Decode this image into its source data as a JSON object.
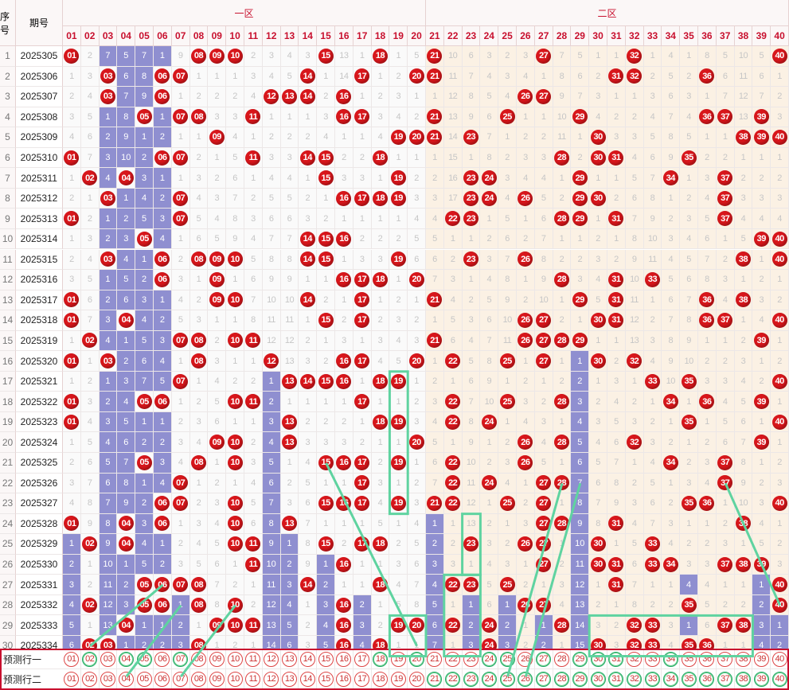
{
  "header": {
    "seq_label": "序号",
    "period_label": "期号",
    "zone1_label": "一区",
    "zone2_label": "二区"
  },
  "columns": [
    "01",
    "02",
    "03",
    "04",
    "05",
    "06",
    "07",
    "08",
    "09",
    "10",
    "11",
    "12",
    "13",
    "14",
    "15",
    "16",
    "17",
    "18",
    "19",
    "20",
    "21",
    "22",
    "23",
    "24",
    "25",
    "26",
    "27",
    "28",
    "29",
    "30",
    "31",
    "32",
    "33",
    "34",
    "35",
    "36",
    "37",
    "38",
    "39",
    "40"
  ],
  "periods": [
    "2025305",
    "2025306",
    "2025307",
    "2025308",
    "2025309",
    "2025310",
    "2025311",
    "2025312",
    "2025313",
    "2025314",
    "2025315",
    "2025316",
    "2025317",
    "2025318",
    "2025319",
    "2025320",
    "2025321",
    "2025322",
    "2025323",
    "2025324",
    "2025325",
    "2025326",
    "2025327",
    "2025328",
    "2025329",
    "2025330",
    "2025331",
    "2025332",
    "2025333",
    "2025334"
  ],
  "rows": [
    [
      "O",
      2,
      7,
      5,
      7,
      1,
      9,
      "O",
      "O",
      "O",
      2,
      3,
      4,
      3,
      "O",
      13,
      1,
      "O",
      1,
      5,
      "O",
      10,
      6,
      3,
      2,
      3,
      "O",
      7,
      5,
      1,
      1,
      "O",
      1,
      4,
      1,
      8,
      5,
      10,
      5,
      "O"
    ],
    [
      1,
      3,
      "O",
      6,
      8,
      "O",
      "O",
      1,
      1,
      1,
      3,
      4,
      5,
      "O",
      1,
      14,
      "O",
      1,
      2,
      "O",
      "O",
      11,
      7,
      4,
      3,
      4,
      1,
      8,
      6,
      2,
      "O",
      "O",
      2,
      5,
      2,
      "O",
      6,
      11,
      6,
      1
    ],
    [
      2,
      4,
      "O",
      7,
      9,
      "O",
      1,
      2,
      2,
      2,
      4,
      "O",
      "O",
      "O",
      2,
      "O",
      1,
      2,
      3,
      1,
      1,
      12,
      8,
      5,
      4,
      "O",
      "O",
      9,
      7,
      3,
      1,
      1,
      3,
      6,
      3,
      1,
      7,
      12,
      7,
      2
    ],
    [
      3,
      5,
      1,
      8,
      "O",
      1,
      "O",
      "O",
      3,
      3,
      "O",
      1,
      1,
      1,
      3,
      "O",
      "O",
      3,
      4,
      2,
      "O",
      13,
      9,
      6,
      "O",
      1,
      1,
      10,
      "O",
      4,
      2,
      2,
      4,
      7,
      4,
      "O",
      "O",
      13,
      "O",
      3
    ],
    [
      4,
      6,
      2,
      9,
      1,
      2,
      1,
      1,
      "O",
      4,
      1,
      2,
      2,
      2,
      4,
      1,
      1,
      4,
      "O",
      "O",
      "O",
      14,
      "O",
      7,
      1,
      2,
      2,
      11,
      1,
      "O",
      3,
      3,
      5,
      8,
      5,
      1,
      1,
      "O",
      "O",
      "O"
    ],
    [
      "O",
      7,
      3,
      10,
      2,
      "O",
      "O",
      2,
      1,
      5,
      "O",
      3,
      3,
      "O",
      "O",
      2,
      2,
      "O",
      1,
      1,
      1,
      15,
      1,
      8,
      2,
      3,
      3,
      "O",
      2,
      "O",
      "O",
      4,
      6,
      9,
      "O",
      2,
      2,
      1,
      1,
      1
    ],
    [
      1,
      "O",
      4,
      "O",
      3,
      1,
      1,
      3,
      2,
      6,
      1,
      4,
      4,
      1,
      "O",
      3,
      3,
      1,
      "O",
      2,
      2,
      16,
      "O",
      "O",
      3,
      4,
      4,
      1,
      "O",
      1,
      1,
      5,
      7,
      "O",
      1,
      3,
      "O",
      2,
      2,
      2
    ],
    [
      2,
      1,
      "O",
      1,
      4,
      2,
      "O",
      4,
      3,
      7,
      2,
      5,
      5,
      2,
      1,
      "O",
      "O",
      "O",
      "O",
      3,
      3,
      17,
      "O",
      "O",
      4,
      "O",
      5,
      2,
      "O",
      "O",
      2,
      6,
      8,
      1,
      2,
      4,
      "O",
      3,
      3,
      3
    ],
    [
      "O",
      2,
      1,
      2,
      5,
      3,
      "O",
      5,
      4,
      8,
      3,
      6,
      6,
      3,
      2,
      1,
      1,
      1,
      1,
      4,
      4,
      "O",
      "O",
      1,
      5,
      1,
      6,
      "O",
      "O",
      1,
      "O",
      7,
      9,
      2,
      3,
      5,
      "O",
      4,
      4,
      4
    ],
    [
      1,
      3,
      2,
      3,
      "O",
      4,
      1,
      6,
      5,
      9,
      4,
      7,
      7,
      "O",
      "O",
      "O",
      2,
      2,
      2,
      5,
      5,
      1,
      1,
      2,
      6,
      2,
      7,
      1,
      1,
      2,
      1,
      8,
      10,
      3,
      4,
      6,
      1,
      5,
      "O",
      "O"
    ],
    [
      2,
      4,
      "O",
      4,
      1,
      "O",
      2,
      "O",
      "O",
      "O",
      5,
      8,
      8,
      "O",
      "O",
      1,
      3,
      3,
      "O",
      6,
      6,
      2,
      "O",
      3,
      7,
      "O",
      8,
      2,
      2,
      3,
      2,
      9,
      11,
      4,
      5,
      7,
      2,
      "O",
      1,
      "O"
    ],
    [
      3,
      5,
      1,
      5,
      2,
      "O",
      3,
      1,
      "O",
      1,
      6,
      9,
      9,
      1,
      1,
      "O",
      "O",
      "O",
      1,
      "O",
      7,
      3,
      1,
      4,
      8,
      1,
      9,
      "O",
      3,
      4,
      "O",
      10,
      "O",
      5,
      6,
      8,
      3,
      1,
      2,
      1
    ],
    [
      "O",
      6,
      2,
      6,
      3,
      1,
      4,
      2,
      "O",
      "O",
      7,
      10,
      10,
      "O",
      2,
      1,
      "O",
      1,
      2,
      1,
      "O",
      4,
      2,
      5,
      9,
      2,
      10,
      1,
      "O",
      5,
      "O",
      11,
      1,
      6,
      7,
      "O",
      4,
      "O",
      3,
      2
    ],
    [
      "O",
      7,
      3,
      "O",
      4,
      2,
      5,
      3,
      1,
      1,
      8,
      11,
      11,
      1,
      "O",
      2,
      "O",
      2,
      3,
      2,
      1,
      5,
      3,
      6,
      10,
      "O",
      "O",
      2,
      1,
      "O",
      "O",
      12,
      2,
      7,
      8,
      "O",
      "O",
      1,
      4,
      "O"
    ],
    [
      1,
      "O",
      4,
      1,
      5,
      3,
      "O",
      "O",
      2,
      "O",
      "O",
      12,
      12,
      2,
      1,
      3,
      1,
      3,
      4,
      3,
      "O",
      6,
      4,
      7,
      11,
      "O",
      "O",
      "O",
      "O",
      1,
      1,
      13,
      3,
      8,
      9,
      1,
      1,
      2,
      "O",
      1
    ],
    [
      "O",
      1,
      "O",
      2,
      6,
      4,
      1,
      "O",
      3,
      1,
      1,
      "O",
      13,
      3,
      2,
      "O",
      "O",
      4,
      5,
      "O",
      1,
      "O",
      5,
      8,
      "O",
      1,
      "O",
      1,
      1,
      "O",
      2,
      "O",
      4,
      9,
      10,
      2,
      2,
      3,
      1,
      2
    ],
    [
      1,
      2,
      1,
      3,
      7,
      5,
      "O",
      1,
      4,
      2,
      2,
      1,
      "O",
      "O",
      "O",
      "O",
      1,
      "O",
      "O",
      1,
      2,
      1,
      6,
      9,
      1,
      2,
      1,
      2,
      2,
      1,
      3,
      1,
      "O",
      10,
      "O",
      3,
      3,
      4,
      2,
      "O"
    ],
    [
      "O",
      3,
      2,
      4,
      "O",
      "O",
      1,
      2,
      5,
      "O",
      "O",
      2,
      1,
      1,
      1,
      1,
      "O",
      1,
      1,
      2,
      3,
      "O",
      7,
      10,
      "O",
      3,
      2,
      "O",
      3,
      2,
      4,
      2,
      1,
      "O",
      1,
      "O",
      4,
      5,
      "O",
      1
    ],
    [
      "O",
      4,
      3,
      5,
      1,
      1,
      2,
      3,
      6,
      1,
      1,
      3,
      "O",
      2,
      2,
      2,
      1,
      "O",
      "O",
      3,
      4,
      "O",
      8,
      "O",
      1,
      4,
      3,
      1,
      4,
      3,
      5,
      3,
      2,
      1,
      "O",
      1,
      5,
      6,
      1,
      "O"
    ],
    [
      1,
      5,
      4,
      6,
      2,
      2,
      3,
      4,
      "O",
      "O",
      2,
      4,
      "O",
      3,
      3,
      3,
      2,
      1,
      1,
      "O",
      5,
      1,
      9,
      1,
      2,
      "O",
      4,
      "O",
      5,
      4,
      6,
      "O",
      3,
      2,
      1,
      2,
      6,
      7,
      "O",
      1
    ],
    [
      2,
      6,
      5,
      7,
      "O",
      3,
      4,
      "O",
      1,
      "O",
      3,
      5,
      1,
      4,
      "O",
      "O",
      "O",
      2,
      "O",
      1,
      6,
      "O",
      10,
      2,
      3,
      "O",
      5,
      1,
      6,
      5,
      7,
      1,
      4,
      "O",
      2,
      3,
      "O",
      8,
      1,
      2
    ],
    [
      3,
      7,
      6,
      8,
      1,
      4,
      "O",
      1,
      2,
      1,
      4,
      6,
      2,
      5,
      1,
      1,
      "O",
      3,
      1,
      2,
      7,
      "O",
      11,
      "O",
      4,
      1,
      "O",
      "O",
      7,
      6,
      8,
      2,
      5,
      1,
      3,
      4,
      "O",
      9,
      2,
      3
    ],
    [
      4,
      8,
      7,
      9,
      2,
      "O",
      "O",
      2,
      3,
      "O",
      5,
      7,
      3,
      6,
      "O",
      "O",
      "O",
      4,
      "O",
      3,
      "O",
      "O",
      12,
      1,
      "O",
      2,
      "O",
      1,
      8,
      7,
      9,
      3,
      6,
      2,
      "O",
      "O",
      1,
      10,
      3,
      "O"
    ],
    [
      "O",
      9,
      8,
      "O",
      3,
      "O",
      1,
      3,
      4,
      "O",
      6,
      8,
      "O",
      7,
      1,
      1,
      1,
      5,
      1,
      4,
      1,
      1,
      13,
      2,
      1,
      3,
      "O",
      "O",
      9,
      8,
      "O",
      4,
      7,
      3,
      1,
      1,
      2,
      "O",
      4,
      1
    ],
    [
      1,
      "O",
      9,
      "O",
      4,
      1,
      2,
      4,
      5,
      "O",
      "O",
      9,
      1,
      8,
      "O",
      2,
      "O",
      "O",
      2,
      5,
      2,
      2,
      "O",
      3,
      2,
      "O",
      "O",
      1,
      10,
      "O",
      1,
      5,
      "O",
      4,
      2,
      2,
      3,
      1,
      5,
      2
    ],
    [
      2,
      1,
      10,
      1,
      5,
      2,
      3,
      5,
      6,
      1,
      "O",
      10,
      2,
      9,
      1,
      "O",
      1,
      1,
      3,
      6,
      3,
      3,
      1,
      4,
      3,
      1,
      "O",
      2,
      11,
      "O",
      "O",
      6,
      "O",
      "O",
      3,
      3,
      "O",
      "O",
      "O",
      3
    ],
    [
      3,
      2,
      11,
      2,
      "O",
      "O",
      "O",
      "O",
      7,
      2,
      1,
      11,
      3,
      "O",
      2,
      1,
      1,
      "O",
      4,
      7,
      4,
      "O",
      "O",
      5,
      "O",
      2,
      1,
      3,
      12,
      1,
      "O",
      7,
      1,
      1,
      4,
      4,
      1,
      1,
      1,
      "O"
    ],
    [
      4,
      "O",
      12,
      3,
      "O",
      "O",
      1,
      "O",
      8,
      "O",
      2,
      12,
      4,
      1,
      3,
      "O",
      2,
      1,
      5,
      8,
      5,
      1,
      1,
      6,
      1,
      "O",
      "O",
      4,
      13,
      2,
      1,
      8,
      2,
      2,
      "O",
      5,
      2,
      2,
      2,
      "O"
    ],
    [
      5,
      1,
      13,
      "O",
      1,
      1,
      2,
      1,
      "O",
      "O",
      "O",
      13,
      5,
      2,
      4,
      "O",
      3,
      2,
      "O",
      "O",
      6,
      "O",
      2,
      "O",
      2,
      1,
      1,
      "O",
      14,
      3,
      2,
      "O",
      "O",
      3,
      1,
      6,
      "O",
      "O",
      3,
      1
    ],
    [
      6,
      "O",
      "O",
      1,
      2,
      2,
      3,
      "O",
      1,
      2,
      1,
      14,
      6,
      3,
      5,
      "O",
      4,
      "O",
      1,
      1,
      7,
      1,
      3,
      "O",
      3,
      2,
      2,
      1,
      15,
      "O",
      3,
      "O",
      "O",
      4,
      "O",
      "O",
      1,
      1,
      4,
      2
    ]
  ],
  "bars": {
    "0": {
      "start": 24
    },
    "2": {
      "start": 0
    },
    "3": {
      "start": 0
    },
    "4": {
      "start": 0
    },
    "5": {
      "start": 0
    },
    "6": {
      "start": 27
    },
    "11": {
      "start": 16
    },
    "12": {
      "start": 24
    },
    "14": {
      "start": 25
    },
    "16": {
      "start": 27
    },
    "20": {
      "start": 23
    },
    "22": {
      "start": 27
    },
    "24": {
      "start": 27
    },
    "26": {
      "start": 27
    },
    "28": {
      "start": 15
    },
    "34": {
      "start": 26
    },
    "38": {
      "start": 26
    },
    "39": {
      "start": 28
    }
  },
  "predictions": [
    {
      "label": "预测行一",
      "marked": [
        "02",
        "04",
        "05",
        "07",
        "18",
        "20",
        "24",
        "25",
        "27",
        "29",
        "30",
        "31",
        "34"
      ]
    },
    {
      "label": "预测行二",
      "marked": [
        "21",
        "22",
        "23",
        "24",
        "25",
        "26",
        "27",
        "28",
        "29",
        "30",
        "31",
        "32",
        "33",
        "34",
        "35",
        "36",
        "37",
        "38",
        "39",
        "40"
      ]
    }
  ]
}
